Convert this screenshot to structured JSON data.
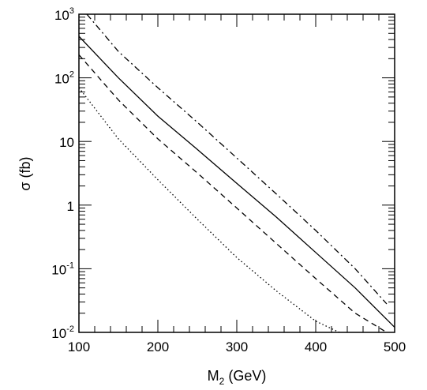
{
  "chart_data": {
    "type": "line",
    "title": "",
    "xlabel": {
      "main": "M",
      "sub": "2",
      "rest": " (GeV)"
    },
    "ylabel": "σ (fb)",
    "xlim": [
      100,
      500
    ],
    "ylim": [
      0.01,
      1000
    ],
    "yscale": "log",
    "grid": false,
    "legend": "none",
    "x_ticks": [
      "100",
      "200",
      "300",
      "400",
      "500"
    ],
    "y_ticks": [
      {
        "base": "10",
        "exp": "-2",
        "value": 0.01
      },
      {
        "base": "10",
        "exp": "-1",
        "value": 0.1
      },
      {
        "base": "1",
        "exp": "",
        "value": 1
      },
      {
        "base": "10",
        "exp": "",
        "value": 10
      },
      {
        "base": "10",
        "exp": "2",
        "value": 100
      },
      {
        "base": "10",
        "exp": "3",
        "value": 1000
      }
    ],
    "series": [
      {
        "style": "dash-dot",
        "x": [
          110,
          150,
          200,
          250,
          300,
          350,
          400,
          450,
          490
        ],
        "y": [
          1000,
          260,
          70,
          20,
          5.5,
          1.5,
          0.4,
          0.1,
          0.028
        ]
      },
      {
        "style": "solid",
        "x": [
          100,
          150,
          200,
          250,
          300,
          350,
          400,
          450,
          500
        ],
        "y": [
          450,
          100,
          25,
          7.5,
          2.2,
          0.65,
          0.18,
          0.05,
          0.012
        ]
      },
      {
        "style": "dashed",
        "x": [
          100,
          150,
          200,
          250,
          300,
          350,
          400,
          450,
          490
        ],
        "y": [
          230,
          45,
          11,
          3.2,
          0.9,
          0.25,
          0.07,
          0.02,
          0.01
        ]
      },
      {
        "style": "dotted",
        "x": [
          100,
          150,
          200,
          250,
          300,
          350,
          400,
          430
        ],
        "y": [
          70,
          11,
          2.5,
          0.6,
          0.15,
          0.045,
          0.015,
          0.01
        ]
      }
    ]
  }
}
